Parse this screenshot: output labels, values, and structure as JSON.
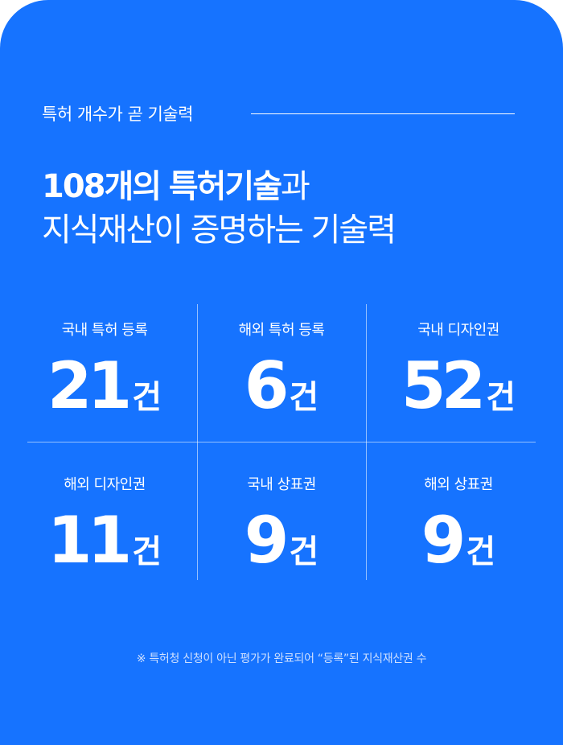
{
  "eyebrow": "특허 개수가 곧 기술력",
  "headline": {
    "line1_bold_a": "108개의",
    "line1_bold_b": "특허기술",
    "line1_light": "과",
    "line2": "지식재산이 증명하는 기술력"
  },
  "stats": [
    {
      "label": "국내 특허 등록",
      "value": "21",
      "unit": "건"
    },
    {
      "label": "해외 특허 등록",
      "value": "6",
      "unit": "건"
    },
    {
      "label": "국내 디자인권",
      "value": "52",
      "unit": "건"
    },
    {
      "label": "해외 디자인권",
      "value": "11",
      "unit": "건"
    },
    {
      "label": "국내 상표권",
      "value": "9",
      "unit": "건"
    },
    {
      "label": "해외 상표권",
      "value": "9",
      "unit": "건"
    }
  ],
  "footnote": "※ 특허청 신청이 아닌 평가가 완료되어 “등록”된 지식재산권 수",
  "colors": {
    "background": "#1673ff",
    "text": "#ffffff",
    "footnote": "#cfe0ff"
  }
}
